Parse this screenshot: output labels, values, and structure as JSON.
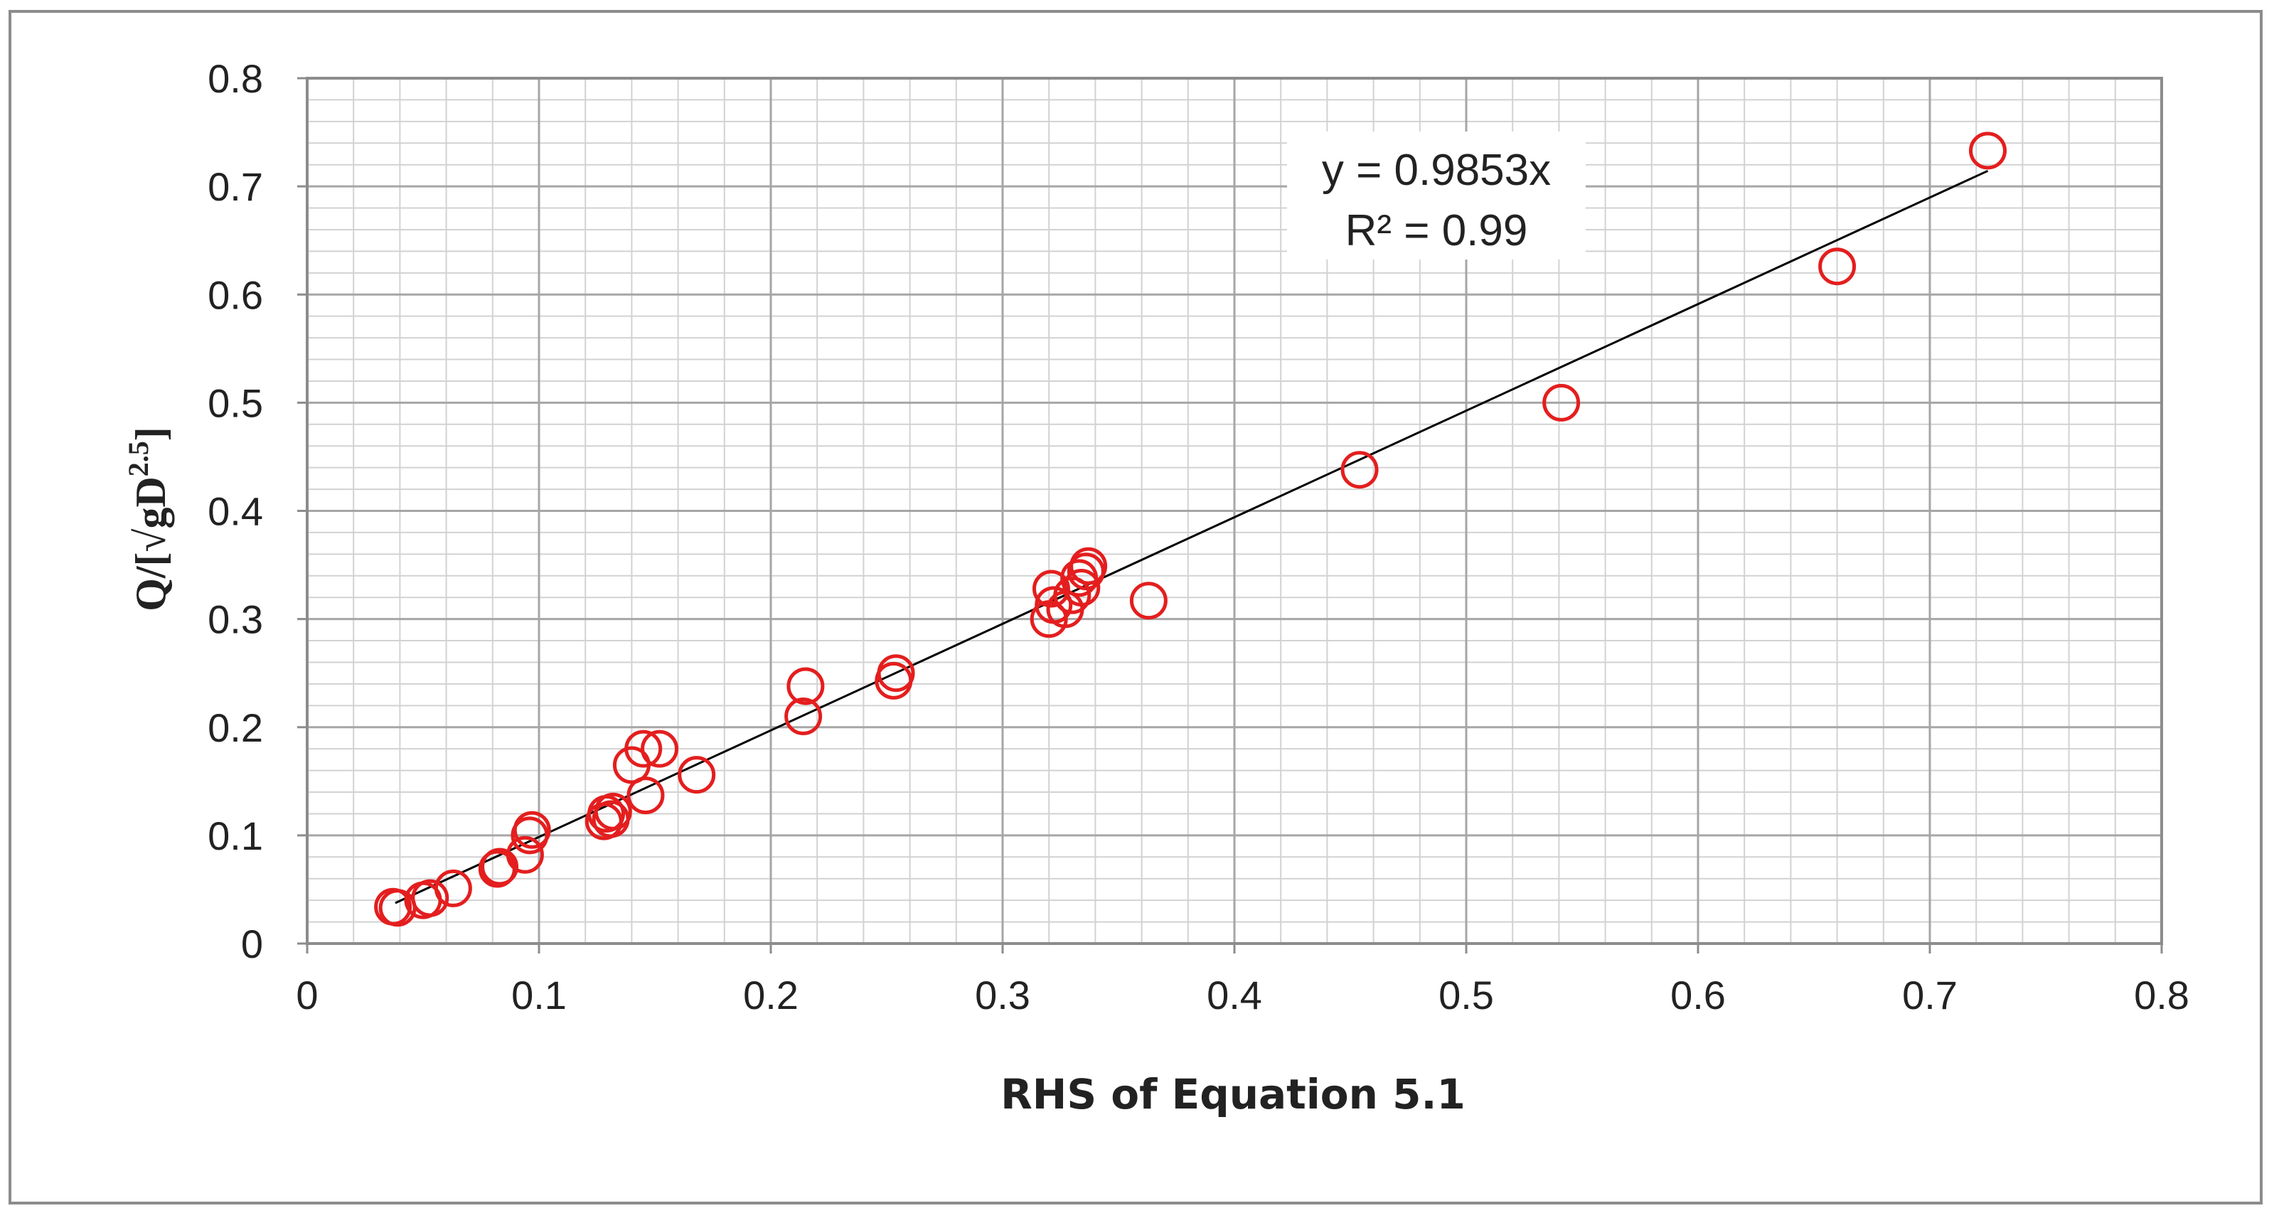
{
  "chart_data": {
    "type": "scatter",
    "title": "",
    "xlabel": "RHS of Equation 5.1",
    "ylabel": "Q/[√gD²·⁵]",
    "ylabel_parts": {
      "prefix": "Q/[",
      "root": "√",
      "mid": "gD",
      "exp": "2.5",
      "suffix": "]"
    },
    "xlim": [
      0,
      0.8
    ],
    "ylim": [
      0,
      0.8
    ],
    "x_ticks": [
      "0",
      "0.1",
      "0.2",
      "0.3",
      "0.4",
      "0.5",
      "0.6",
      "0.7",
      "0.8"
    ],
    "y_ticks": [
      "0",
      "0.1",
      "0.2",
      "0.3",
      "0.4",
      "0.5",
      "0.6",
      "0.7",
      "0.8"
    ],
    "grid": true,
    "marker": "open-circle",
    "marker_color": "#e41e1e",
    "trendline": {
      "type": "linear-through-origin",
      "slope": 0.9853,
      "x_range": [
        0.038,
        0.725
      ],
      "color": "#000000",
      "equation": "y = 0.9853x",
      "r_squared": "R² = 0.99"
    },
    "points": [
      {
        "x": 0.037,
        "y": 0.034
      },
      {
        "x": 0.039,
        "y": 0.033
      },
      {
        "x": 0.05,
        "y": 0.04
      },
      {
        "x": 0.053,
        "y": 0.042
      },
      {
        "x": 0.063,
        "y": 0.051
      },
      {
        "x": 0.082,
        "y": 0.069
      },
      {
        "x": 0.083,
        "y": 0.071
      },
      {
        "x": 0.094,
        "y": 0.082
      },
      {
        "x": 0.096,
        "y": 0.1
      },
      {
        "x": 0.097,
        "y": 0.105
      },
      {
        "x": 0.128,
        "y": 0.113
      },
      {
        "x": 0.129,
        "y": 0.12
      },
      {
        "x": 0.131,
        "y": 0.115
      },
      {
        "x": 0.132,
        "y": 0.122
      },
      {
        "x": 0.14,
        "y": 0.165
      },
      {
        "x": 0.145,
        "y": 0.18
      },
      {
        "x": 0.146,
        "y": 0.137
      },
      {
        "x": 0.152,
        "y": 0.18
      },
      {
        "x": 0.168,
        "y": 0.156
      },
      {
        "x": 0.214,
        "y": 0.21
      },
      {
        "x": 0.215,
        "y": 0.238
      },
      {
        "x": 0.253,
        "y": 0.243
      },
      {
        "x": 0.254,
        "y": 0.25
      },
      {
        "x": 0.32,
        "y": 0.3
      },
      {
        "x": 0.321,
        "y": 0.328
      },
      {
        "x": 0.322,
        "y": 0.313
      },
      {
        "x": 0.327,
        "y": 0.309
      },
      {
        "x": 0.33,
        "y": 0.322
      },
      {
        "x": 0.333,
        "y": 0.338
      },
      {
        "x": 0.334,
        "y": 0.329
      },
      {
        "x": 0.336,
        "y": 0.344
      },
      {
        "x": 0.337,
        "y": 0.349
      },
      {
        "x": 0.363,
        "y": 0.317
      },
      {
        "x": 0.454,
        "y": 0.438
      },
      {
        "x": 0.541,
        "y": 0.5
      },
      {
        "x": 0.66,
        "y": 0.626
      },
      {
        "x": 0.725,
        "y": 0.733
      }
    ]
  }
}
